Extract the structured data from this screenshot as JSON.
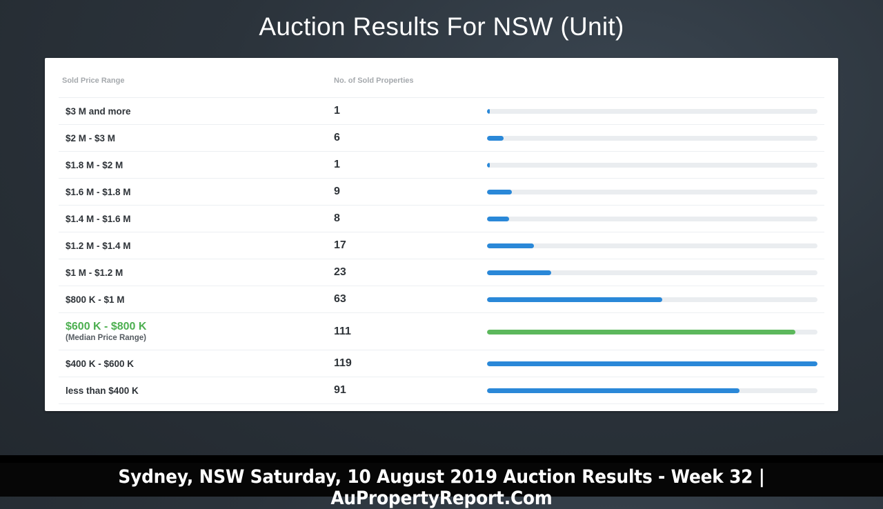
{
  "title": "Auction Results For NSW (Unit)",
  "table": {
    "col_range_header": "Sold Price Range",
    "col_count_header": "No. of Sold Properties"
  },
  "median_note": "(Median Price Range)",
  "footer": {
    "text": "Sydney, NSW Saturday, 10 August 2019 Auction Results - Week 32 | AuPropertyReport.Com"
  },
  "colors": {
    "bar": "#2a88d8",
    "median_bar": "#5cb85c",
    "median_text": "#4caf50",
    "track": "#eaedf0"
  },
  "chart_data": {
    "type": "bar",
    "orientation": "horizontal",
    "categories": [
      "$3 M and more",
      "$2 M - $3 M",
      "$1.8 M - $2 M",
      "$1.6 M - $1.8 M",
      "$1.4 M - $1.6 M",
      "$1.2 M - $1.4 M",
      "$1 M - $1.2 M",
      "$800 K - $1 M",
      "$600 K - $800 K",
      "$400 K - $600 K",
      "less than $400 K"
    ],
    "values": [
      1,
      6,
      1,
      9,
      8,
      17,
      23,
      63,
      111,
      119,
      91
    ],
    "max_value": 119,
    "highlight_index": 8,
    "xlabel": "",
    "ylabel": ""
  }
}
